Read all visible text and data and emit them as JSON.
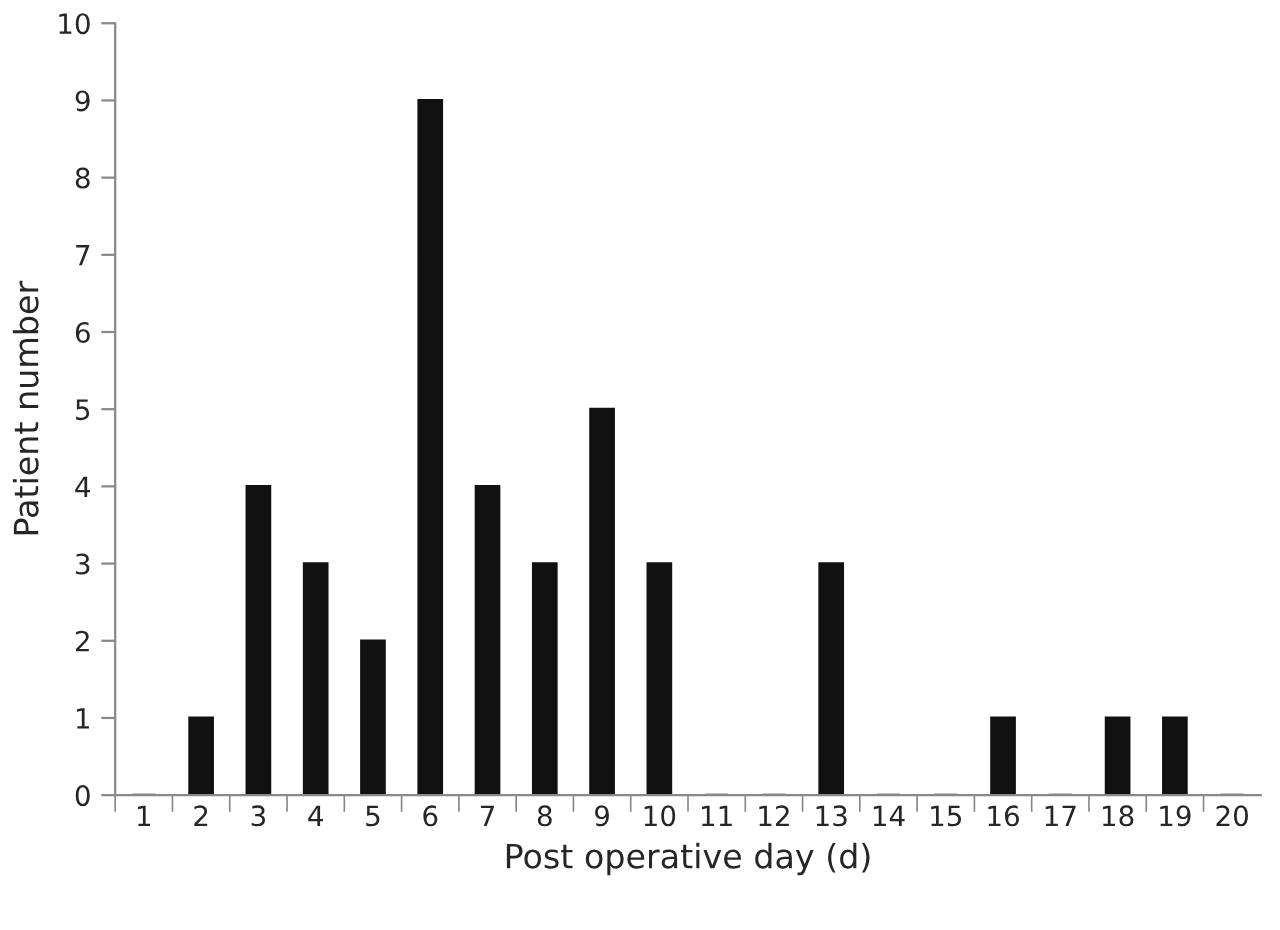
{
  "chart_data": {
    "type": "bar",
    "xlabel": "Post operative day (d)",
    "ylabel": "Patient number",
    "categories": [
      "1",
      "2",
      "3",
      "4",
      "5",
      "6",
      "7",
      "8",
      "9",
      "10",
      "11",
      "12",
      "13",
      "14",
      "15",
      "16",
      "17",
      "18",
      "19",
      "20"
    ],
    "values": [
      0,
      1,
      4,
      3,
      2,
      9,
      4,
      3,
      5,
      3,
      0,
      0,
      3,
      0,
      0,
      1,
      0,
      1,
      1,
      0
    ],
    "color": "#111111",
    "ylim": [
      0,
      10
    ],
    "yticks": [
      0,
      1,
      2,
      3,
      4,
      5,
      6,
      7,
      8,
      9,
      10
    ],
    "grid": false
  }
}
